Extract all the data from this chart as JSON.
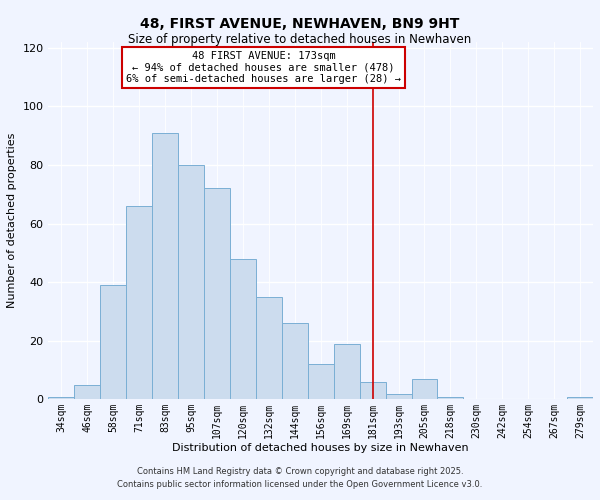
{
  "title": "48, FIRST AVENUE, NEWHAVEN, BN9 9HT",
  "subtitle": "Size of property relative to detached houses in Newhaven",
  "xlabel": "Distribution of detached houses by size in Newhaven",
  "ylabel": "Number of detached properties",
  "bar_labels": [
    "34sqm",
    "46sqm",
    "58sqm",
    "71sqm",
    "83sqm",
    "95sqm",
    "107sqm",
    "120sqm",
    "132sqm",
    "144sqm",
    "156sqm",
    "169sqm",
    "181sqm",
    "193sqm",
    "205sqm",
    "218sqm",
    "230sqm",
    "242sqm",
    "254sqm",
    "267sqm",
    "279sqm"
  ],
  "bar_values": [
    1,
    5,
    39,
    66,
    91,
    80,
    72,
    48,
    35,
    26,
    12,
    19,
    6,
    2,
    7,
    1,
    0,
    0,
    0,
    0,
    1
  ],
  "bar_color": "#ccdcee",
  "bar_edge_color": "#7aafd4",
  "vline_x": 12.0,
  "vline_color": "#cc0000",
  "annotation_title": "48 FIRST AVENUE: 173sqm",
  "annotation_line1": "← 94% of detached houses are smaller (478)",
  "annotation_line2": "6% of semi-detached houses are larger (28) →",
  "annotation_box_color": "#ffffff",
  "annotation_box_edge": "#cc0000",
  "ylim": [
    0,
    122
  ],
  "yticks": [
    0,
    20,
    40,
    60,
    80,
    100,
    120
  ],
  "footnote1": "Contains HM Land Registry data © Crown copyright and database right 2025.",
  "footnote2": "Contains public sector information licensed under the Open Government Licence v3.0.",
  "background_color": "#f0f4ff"
}
